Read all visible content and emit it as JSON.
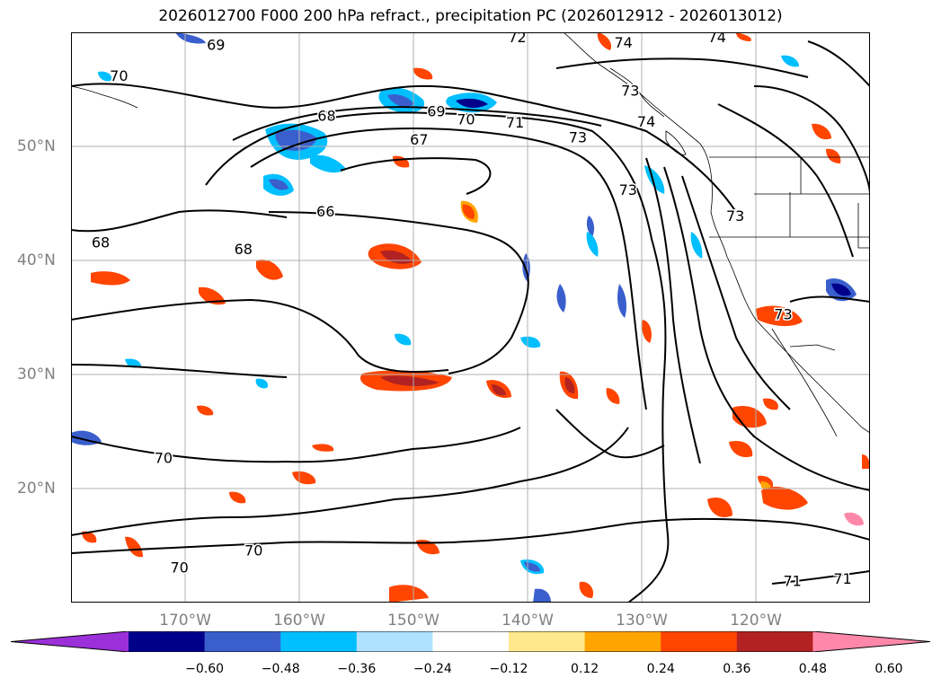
{
  "title": "2026012700 F000 200 hPa refract., precipitation PC (2026012912 - 2026013012)",
  "map": {
    "extent": {
      "lon_min": -180,
      "lon_max": -110,
      "lat_min": 10,
      "lat_max": 60
    },
    "lat_ticks": [
      {
        "value": 50,
        "label": "50°N"
      },
      {
        "value": 40,
        "label": "40°N"
      },
      {
        "value": 30,
        "label": "30°N"
      },
      {
        "value": 20,
        "label": "20°N"
      }
    ],
    "lon_ticks": [
      {
        "value": -170,
        "label": "170°W"
      },
      {
        "value": -160,
        "label": "160°W"
      },
      {
        "value": -150,
        "label": "150°W"
      },
      {
        "value": -140,
        "label": "140°W"
      },
      {
        "value": -130,
        "label": "130°W"
      },
      {
        "value": -120,
        "label": "120°W"
      }
    ],
    "contour_labels": [
      {
        "text": "69",
        "lon": -167.3,
        "lat": 58.8
      },
      {
        "text": "70",
        "lon": -175.8,
        "lat": 56.1
      },
      {
        "text": "72",
        "lon": -140.9,
        "lat": 59.5
      },
      {
        "text": "74",
        "lon": -131.6,
        "lat": 59.0
      },
      {
        "text": "74",
        "lon": -123.4,
        "lat": 59.5
      },
      {
        "text": "73",
        "lon": -131.0,
        "lat": 54.8
      },
      {
        "text": "74",
        "lon": -129.6,
        "lat": 52.1
      },
      {
        "text": "68",
        "lon": -157.6,
        "lat": 52.6
      },
      {
        "text": "69",
        "lon": -148.0,
        "lat": 53.0
      },
      {
        "text": "70",
        "lon": -145.4,
        "lat": 52.3
      },
      {
        "text": "71",
        "lon": -141.1,
        "lat": 52.0
      },
      {
        "text": "73",
        "lon": -135.6,
        "lat": 50.7
      },
      {
        "text": "67",
        "lon": -149.5,
        "lat": 50.5
      },
      {
        "text": "73",
        "lon": -131.2,
        "lat": 46.1
      },
      {
        "text": "73",
        "lon": -121.8,
        "lat": 43.8
      },
      {
        "text": "66",
        "lon": -157.7,
        "lat": 44.2
      },
      {
        "text": "68",
        "lon": -177.4,
        "lat": 41.5
      },
      {
        "text": "68",
        "lon": -164.9,
        "lat": 40.9
      },
      {
        "text": "73",
        "lon": -117.6,
        "lat": 35.2
      },
      {
        "text": "70",
        "lon": -171.9,
        "lat": 22.6
      },
      {
        "text": "70",
        "lon": -164.0,
        "lat": 14.5
      },
      {
        "text": "70",
        "lon": -170.5,
        "lat": 13.0
      },
      {
        "text": "71",
        "lon": -116.8,
        "lat": 11.8
      },
      {
        "text": "71",
        "lon": -112.4,
        "lat": 12.0
      }
    ]
  },
  "colorbar": {
    "colors": [
      "#9b30d9",
      "#00008b",
      "#3a5fcd",
      "#00bfff",
      "#b0e2ff",
      "#ffffff",
      "#ffe98c",
      "#ffa500",
      "#ff4500",
      "#b22222",
      "#ff88aa"
    ],
    "tick_labels": [
      "−0.60",
      "−0.48",
      "−0.36",
      "−0.24",
      "−0.12",
      "0.12",
      "0.24",
      "0.36",
      "0.48",
      "0.60"
    ]
  }
}
